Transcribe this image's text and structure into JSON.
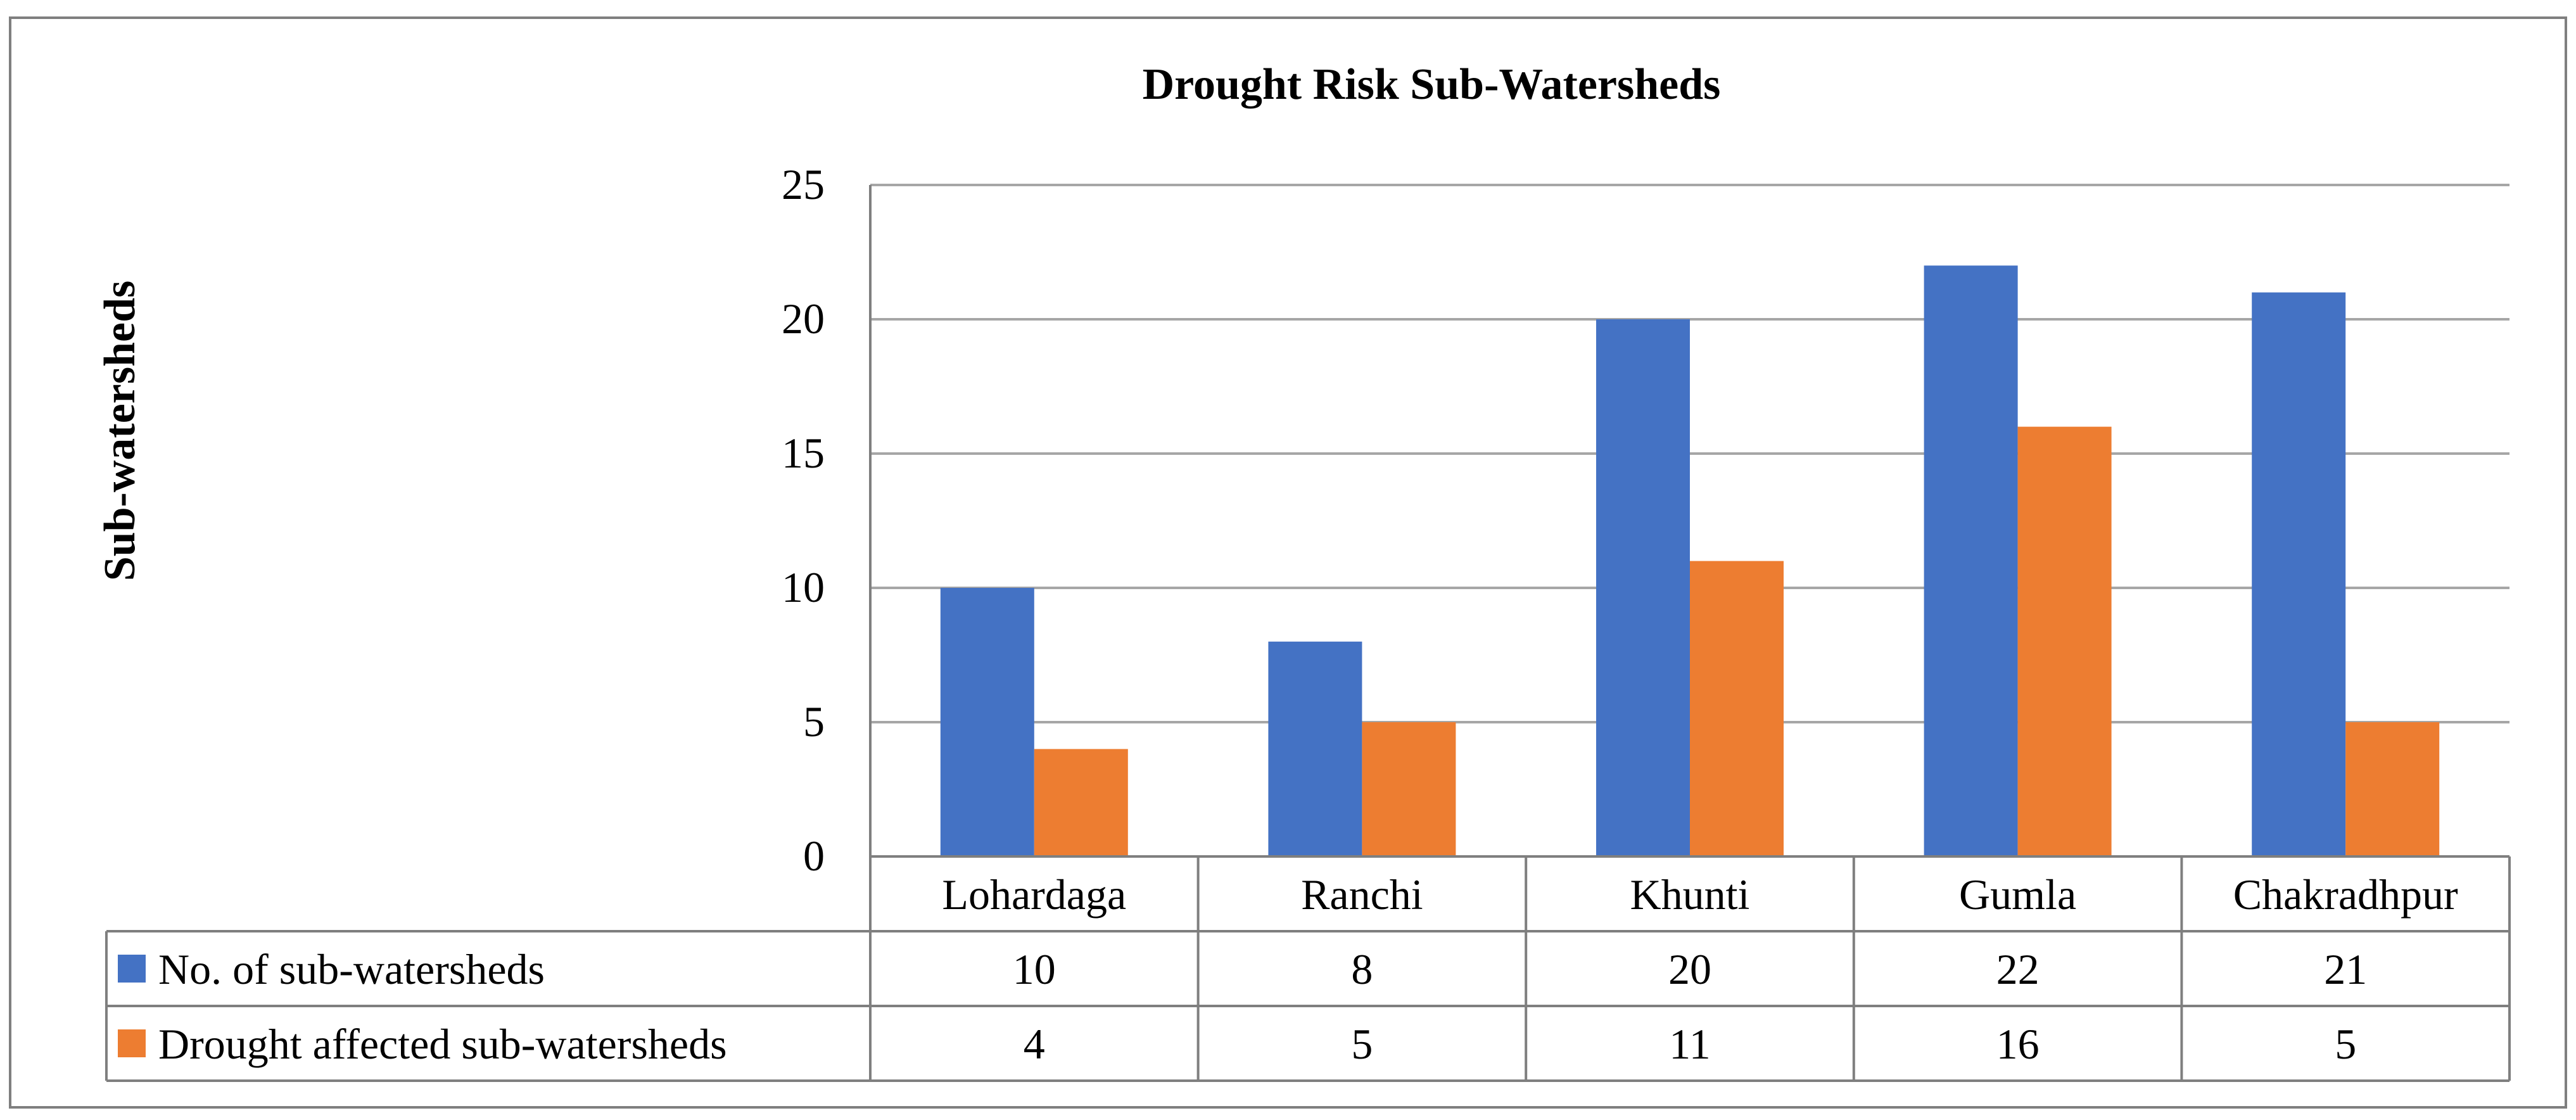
{
  "chart_data": {
    "type": "bar",
    "title": "Drought Risk Sub-Watersheds",
    "xlabel": "",
    "ylabel": "Sub-watersheds",
    "categories": [
      "Lohardaga",
      "Ranchi",
      "Khunti",
      "Gumla",
      "Chakradhpur"
    ],
    "series": [
      {
        "name": "No. of sub-watersheds",
        "color": "#4472C4",
        "values": [
          10,
          8,
          20,
          22,
          21
        ]
      },
      {
        "name": "Drought affected sub-watersheds",
        "color": "#ED7D31",
        "values": [
          4,
          5,
          11,
          16,
          5
        ]
      }
    ],
    "ylim": [
      0,
      25
    ],
    "yticks": [
      0,
      5,
      10,
      15,
      20,
      25
    ],
    "grid": true,
    "legend": "data-table-left",
    "data_table": true
  },
  "colors": {
    "gridline": "#A6A6A6",
    "border": "#7F7F7F"
  }
}
